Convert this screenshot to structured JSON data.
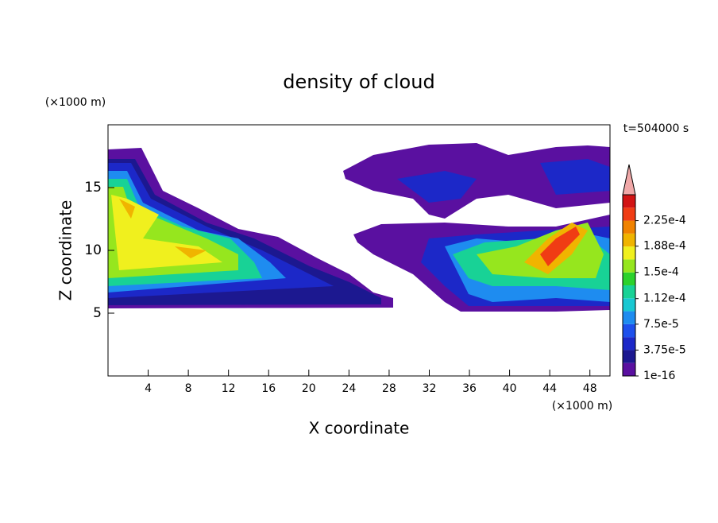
{
  "chart_data": {
    "type": "contour",
    "title": "density of cloud",
    "x_label": "X coordinate",
    "y_label": "Z coordinate",
    "x_unit": "(×1000 m)",
    "y_unit": "(×1000 m)",
    "annotation": "t=504000 s",
    "xlim": [
      0,
      50
    ],
    "xticks": [
      4,
      8,
      12,
      16,
      20,
      24,
      28,
      32,
      36,
      40,
      44,
      48
    ],
    "ylim": [
      0,
      20
    ],
    "yticks": [
      5,
      10,
      15
    ],
    "colorbar": {
      "clim": [
        0,
        0.0002625
      ],
      "levels": [
        0,
        1.875e-05,
        3.75e-05,
        5.625e-05,
        7.5e-05,
        9.375e-05,
        0.0001125,
        0.00013125,
        0.00015,
        0.00016875,
        0.0001875,
        0.00020625,
        0.000225,
        0.00024375,
        0.0002625
      ],
      "colors": [
        "#5a10a0",
        "#1c1890",
        "#1c28c8",
        "#1e50ec",
        "#1e8cf0",
        "#18c8d2",
        "#18d296",
        "#2cd22c",
        "#96e61e",
        "#f0f01e",
        "#f0b400",
        "#f08200",
        "#f03c14",
        "#d21414"
      ],
      "extend_color": "#f0a8a8",
      "ticks": [
        {
          "value": 1e-16,
          "label": "1e-16"
        },
        {
          "value": 3.75e-05,
          "label": "3.75e-5"
        },
        {
          "value": 7.5e-05,
          "label": "7.5e-5"
        },
        {
          "value": 0.000112,
          "label": "1.12e-4"
        },
        {
          "value": 0.00015,
          "label": "1.5e-4"
        },
        {
          "value": 0.000188,
          "label": "1.88e-4"
        },
        {
          "value": 0.000225,
          "label": "2.25e-4"
        }
      ]
    }
  }
}
